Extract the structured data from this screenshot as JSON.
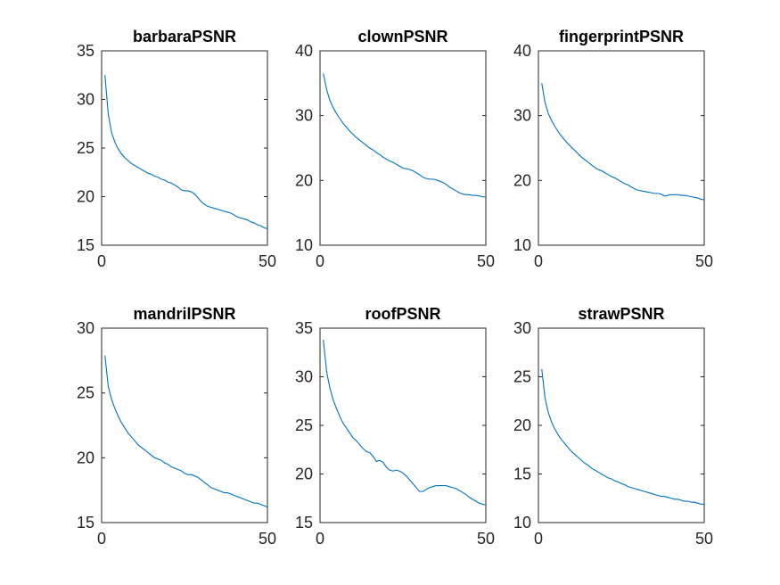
{
  "chart_data": [
    {
      "type": "line",
      "title": "barbaraPSNR",
      "xlim": [
        0,
        50
      ],
      "ylim": [
        15,
        35
      ],
      "xticks": [
        0,
        50
      ],
      "yticks": [
        15,
        20,
        25,
        30,
        35
      ],
      "series": [
        {
          "color": "#0072BD",
          "x": [
            1,
            2,
            3,
            4,
            5,
            6,
            7,
            8,
            9,
            10,
            11,
            12,
            13,
            14,
            15,
            16,
            17,
            18,
            19,
            20,
            21,
            22,
            23,
            24,
            25,
            26,
            27,
            28,
            29,
            30,
            31,
            32,
            33,
            34,
            35,
            36,
            37,
            38,
            39,
            40,
            41,
            42,
            43,
            44,
            45,
            46,
            47,
            48,
            49,
            50
          ],
          "y": [
            32.5,
            28.5,
            26.6,
            25.6,
            24.9,
            24.4,
            24.0,
            23.7,
            23.4,
            23.2,
            23.0,
            22.8,
            22.6,
            22.4,
            22.3,
            22.1,
            22.0,
            21.8,
            21.7,
            21.5,
            21.4,
            21.2,
            21.0,
            20.7,
            20.6,
            20.6,
            20.5,
            20.3,
            19.9,
            19.5,
            19.2,
            19.0,
            18.9,
            18.8,
            18.7,
            18.6,
            18.5,
            18.4,
            18.3,
            18.1,
            17.9,
            17.8,
            17.7,
            17.6,
            17.4,
            17.3,
            17.1,
            17.0,
            16.8,
            16.7
          ]
        }
      ]
    },
    {
      "type": "line",
      "title": "clownPSNR",
      "xlim": [
        0,
        50
      ],
      "ylim": [
        10,
        40
      ],
      "xticks": [
        0,
        50
      ],
      "yticks": [
        10,
        20,
        30,
        40
      ],
      "series": [
        {
          "color": "#0072BD",
          "x": [
            1,
            2,
            3,
            4,
            5,
            6,
            7,
            8,
            9,
            10,
            11,
            12,
            13,
            14,
            15,
            16,
            17,
            18,
            19,
            20,
            21,
            22,
            23,
            24,
            25,
            26,
            27,
            28,
            29,
            30,
            31,
            32,
            33,
            34,
            35,
            36,
            37,
            38,
            39,
            40,
            41,
            42,
            43,
            44,
            45,
            46,
            47,
            48,
            49,
            50
          ],
          "y": [
            36.5,
            34.0,
            32.3,
            31.2,
            30.3,
            29.5,
            28.8,
            28.2,
            27.6,
            27.1,
            26.6,
            26.2,
            25.8,
            25.4,
            25.0,
            24.7,
            24.3,
            24.0,
            23.6,
            23.3,
            23.0,
            22.8,
            22.5,
            22.2,
            21.9,
            21.8,
            21.7,
            21.5,
            21.2,
            20.9,
            20.5,
            20.3,
            20.2,
            20.2,
            20.1,
            19.9,
            19.7,
            19.4,
            19.0,
            18.7,
            18.4,
            18.1,
            17.9,
            17.8,
            17.8,
            17.7,
            17.7,
            17.6,
            17.5,
            17.4
          ]
        }
      ]
    },
    {
      "type": "line",
      "title": "fingerprintPSNR",
      "xlim": [
        0,
        50
      ],
      "ylim": [
        10,
        40
      ],
      "xticks": [
        0,
        50
      ],
      "yticks": [
        10,
        20,
        30,
        40
      ],
      "series": [
        {
          "color": "#0072BD",
          "x": [
            1,
            2,
            3,
            4,
            5,
            6,
            7,
            8,
            9,
            10,
            11,
            12,
            13,
            14,
            15,
            16,
            17,
            18,
            19,
            20,
            21,
            22,
            23,
            24,
            25,
            26,
            27,
            28,
            29,
            30,
            31,
            32,
            33,
            34,
            35,
            36,
            37,
            38,
            39,
            40,
            41,
            42,
            43,
            44,
            45,
            46,
            47,
            48,
            49,
            50
          ],
          "y": [
            35.0,
            32.0,
            30.3,
            29.2,
            28.3,
            27.5,
            26.8,
            26.2,
            25.6,
            25.1,
            24.6,
            24.1,
            23.6,
            23.2,
            22.8,
            22.4,
            22.0,
            21.7,
            21.5,
            21.2,
            20.9,
            20.6,
            20.4,
            20.1,
            19.8,
            19.5,
            19.3,
            19.0,
            18.7,
            18.5,
            18.4,
            18.3,
            18.2,
            18.1,
            18.0,
            18.0,
            17.9,
            17.6,
            17.7,
            17.8,
            17.8,
            17.8,
            17.7,
            17.7,
            17.6,
            17.5,
            17.4,
            17.3,
            17.1,
            17.0
          ]
        }
      ]
    },
    {
      "type": "line",
      "title": "mandrilPSNR",
      "xlim": [
        0,
        50
      ],
      "ylim": [
        15,
        30
      ],
      "xticks": [
        0,
        50
      ],
      "yticks": [
        15,
        20,
        25,
        30
      ],
      "series": [
        {
          "color": "#0072BD",
          "x": [
            1,
            2,
            3,
            4,
            5,
            6,
            7,
            8,
            9,
            10,
            11,
            12,
            13,
            14,
            15,
            16,
            17,
            18,
            19,
            20,
            21,
            22,
            23,
            24,
            25,
            26,
            27,
            28,
            29,
            30,
            31,
            32,
            33,
            34,
            35,
            36,
            37,
            38,
            39,
            40,
            41,
            42,
            43,
            44,
            45,
            46,
            47,
            48,
            49,
            50
          ],
          "y": [
            27.9,
            25.5,
            24.5,
            23.8,
            23.2,
            22.7,
            22.3,
            21.9,
            21.6,
            21.3,
            21.0,
            20.8,
            20.6,
            20.4,
            20.2,
            20.0,
            19.9,
            19.8,
            19.6,
            19.5,
            19.3,
            19.2,
            19.1,
            19.0,
            18.8,
            18.7,
            18.7,
            18.6,
            18.5,
            18.3,
            18.1,
            17.9,
            17.7,
            17.6,
            17.5,
            17.4,
            17.3,
            17.3,
            17.2,
            17.1,
            17.0,
            16.9,
            16.8,
            16.7,
            16.6,
            16.5,
            16.5,
            16.4,
            16.3,
            16.2
          ]
        }
      ]
    },
    {
      "type": "line",
      "title": "roofPSNR",
      "xlim": [
        0,
        50
      ],
      "ylim": [
        15,
        35
      ],
      "xticks": [
        0,
        50
      ],
      "yticks": [
        15,
        20,
        25,
        30,
        35
      ],
      "series": [
        {
          "color": "#0072BD",
          "x": [
            1,
            2,
            3,
            4,
            5,
            6,
            7,
            8,
            9,
            10,
            11,
            12,
            13,
            14,
            15,
            16,
            17,
            18,
            19,
            20,
            21,
            22,
            23,
            24,
            25,
            26,
            27,
            28,
            29,
            30,
            31,
            32,
            33,
            34,
            35,
            36,
            37,
            38,
            39,
            40,
            41,
            42,
            43,
            44,
            45,
            46,
            47,
            48,
            49,
            50
          ],
          "y": [
            33.8,
            30.5,
            28.8,
            27.6,
            26.7,
            25.9,
            25.2,
            24.7,
            24.2,
            23.7,
            23.4,
            23.0,
            22.6,
            22.3,
            22.2,
            21.8,
            21.3,
            21.4,
            21.2,
            20.7,
            20.4,
            20.3,
            20.4,
            20.3,
            20.1,
            19.8,
            19.4,
            19.0,
            18.6,
            18.2,
            18.2,
            18.4,
            18.6,
            18.7,
            18.8,
            18.8,
            18.8,
            18.8,
            18.7,
            18.6,
            18.5,
            18.3,
            18.1,
            17.9,
            17.6,
            17.4,
            17.2,
            17.0,
            16.9,
            16.8
          ]
        }
      ]
    },
    {
      "type": "line",
      "title": "strawPSNR",
      "xlim": [
        0,
        50
      ],
      "ylim": [
        10,
        30
      ],
      "xticks": [
        0,
        50
      ],
      "yticks": [
        10,
        15,
        20,
        25,
        30
      ],
      "series": [
        {
          "color": "#0072BD",
          "x": [
            1,
            2,
            3,
            4,
            5,
            6,
            7,
            8,
            9,
            10,
            11,
            12,
            13,
            14,
            15,
            16,
            17,
            18,
            19,
            20,
            21,
            22,
            23,
            24,
            25,
            26,
            27,
            28,
            29,
            30,
            31,
            32,
            33,
            34,
            35,
            36,
            37,
            38,
            39,
            40,
            41,
            42,
            43,
            44,
            45,
            46,
            47,
            48,
            49,
            50
          ],
          "y": [
            25.8,
            22.8,
            21.3,
            20.3,
            19.6,
            19.0,
            18.5,
            18.1,
            17.7,
            17.3,
            17.0,
            16.7,
            16.4,
            16.1,
            15.9,
            15.6,
            15.4,
            15.2,
            15.0,
            14.8,
            14.6,
            14.5,
            14.3,
            14.2,
            14.0,
            13.9,
            13.7,
            13.6,
            13.5,
            13.4,
            13.3,
            13.2,
            13.1,
            13.0,
            12.9,
            12.8,
            12.7,
            12.7,
            12.6,
            12.5,
            12.4,
            12.4,
            12.3,
            12.2,
            12.2,
            12.1,
            12.1,
            12.0,
            11.9,
            11.9
          ]
        }
      ]
    }
  ]
}
